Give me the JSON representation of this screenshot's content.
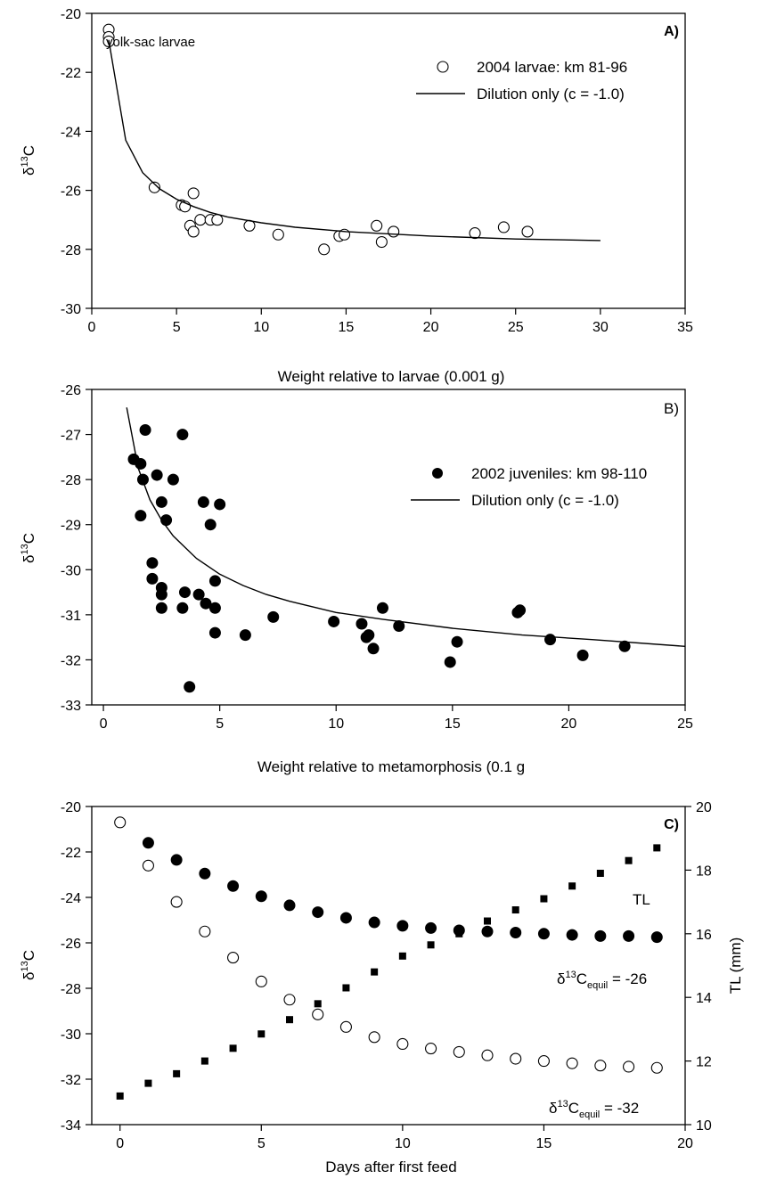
{
  "chart_data": [
    {
      "type": "scatter",
      "panel_label": "A)",
      "xlabel": "Weight relative to larvae (0.001 g)",
      "ylabel_main": "δ",
      "ylabel_sup": "13",
      "ylabel_tail": "C",
      "xlim": [
        0,
        35
      ],
      "ylim": [
        -30,
        -20
      ],
      "xticks": [
        0,
        5,
        10,
        15,
        20,
        25,
        30,
        35
      ],
      "yticks": [
        -30,
        -28,
        -26,
        -24,
        -22,
        -20
      ],
      "grid": false,
      "legend_position": "top-right",
      "annotation": "yolk-sac larvae",
      "series": [
        {
          "name": "2004 larvae: km 81-96",
          "style": "open-circle",
          "points": [
            [
              1.0,
              -20.55
            ],
            [
              1.0,
              -20.8
            ],
            [
              1.0,
              -20.95
            ],
            [
              3.7,
              -25.9
            ],
            [
              5.3,
              -26.5
            ],
            [
              5.5,
              -26.55
            ],
            [
              5.8,
              -27.2
            ],
            [
              6.0,
              -27.4
            ],
            [
              6.0,
              -26.1
            ],
            [
              6.4,
              -27.0
            ],
            [
              7.0,
              -27.0
            ],
            [
              7.4,
              -27.0
            ],
            [
              9.3,
              -27.2
            ],
            [
              11.0,
              -27.5
            ],
            [
              13.7,
              -28.0
            ],
            [
              14.6,
              -27.55
            ],
            [
              14.9,
              -27.5
            ],
            [
              16.8,
              -27.2
            ],
            [
              17.1,
              -27.75
            ],
            [
              17.8,
              -27.4
            ],
            [
              22.6,
              -27.45
            ],
            [
              24.3,
              -27.25
            ],
            [
              25.7,
              -27.4
            ]
          ]
        },
        {
          "name": "Dilution only (c = -1.0)",
          "style": "line",
          "points": [
            [
              1,
              -20.9
            ],
            [
              2,
              -24.3
            ],
            [
              3,
              -25.4
            ],
            [
              4,
              -25.95
            ],
            [
              5,
              -26.3
            ],
            [
              6,
              -26.55
            ],
            [
              7,
              -26.75
            ],
            [
              8,
              -26.9
            ],
            [
              10,
              -27.1
            ],
            [
              12,
              -27.25
            ],
            [
              15,
              -27.4
            ],
            [
              20,
              -27.55
            ],
            [
              25,
              -27.65
            ],
            [
              30,
              -27.7
            ]
          ]
        }
      ]
    },
    {
      "type": "scatter",
      "panel_label": "B)",
      "xlabel": "Weight relative to metamorphosis (0.1 g",
      "ylabel_main": "δ",
      "ylabel_sup": "13",
      "ylabel_tail": "C",
      "xlim": [
        -0.5,
        25
      ],
      "ylim": [
        -33,
        -26
      ],
      "xticks": [
        0,
        5,
        10,
        15,
        20,
        25
      ],
      "yticks": [
        -33,
        -32,
        -31,
        -30,
        -29,
        -28,
        -27,
        -26
      ],
      "grid": false,
      "legend_position": "top-right",
      "series": [
        {
          "name": "2002 juveniles: km 98-110",
          "style": "filled-circle",
          "points": [
            [
              1.3,
              -27.55
            ],
            [
              1.6,
              -27.65
            ],
            [
              1.6,
              -28.8
            ],
            [
              1.7,
              -28.0
            ],
            [
              1.8,
              -26.9
            ],
            [
              2.1,
              -29.85
            ],
            [
              2.1,
              -30.2
            ],
            [
              2.3,
              -27.9
            ],
            [
              2.5,
              -28.5
            ],
            [
              2.5,
              -30.4
            ],
            [
              2.5,
              -30.55
            ],
            [
              2.5,
              -30.85
            ],
            [
              2.7,
              -28.9
            ],
            [
              3.0,
              -28.0
            ],
            [
              3.4,
              -27.0
            ],
            [
              3.4,
              -30.85
            ],
            [
              3.5,
              -30.5
            ],
            [
              3.7,
              -32.6
            ],
            [
              4.1,
              -30.55
            ],
            [
              4.3,
              -28.5
            ],
            [
              4.4,
              -30.75
            ],
            [
              4.6,
              -29.0
            ],
            [
              4.8,
              -30.25
            ],
            [
              4.8,
              -30.85
            ],
            [
              4.8,
              -31.4
            ],
            [
              5.0,
              -28.55
            ],
            [
              6.1,
              -31.45
            ],
            [
              7.3,
              -31.05
            ],
            [
              9.9,
              -31.15
            ],
            [
              11.1,
              -31.2
            ],
            [
              11.3,
              -31.5
            ],
            [
              11.4,
              -31.45
            ],
            [
              11.6,
              -31.75
            ],
            [
              12.0,
              -30.85
            ],
            [
              12.7,
              -31.25
            ],
            [
              14.9,
              -32.05
            ],
            [
              15.2,
              -31.6
            ],
            [
              17.8,
              -30.95
            ],
            [
              17.9,
              -30.9
            ],
            [
              19.2,
              -31.55
            ],
            [
              20.6,
              -31.9
            ],
            [
              22.4,
              -31.7
            ]
          ]
        },
        {
          "name": "Dilution only (c = -1.0)",
          "style": "line",
          "points": [
            [
              1,
              -26.4
            ],
            [
              1.5,
              -27.75
            ],
            [
              2,
              -28.45
            ],
            [
              2.5,
              -28.9
            ],
            [
              3,
              -29.25
            ],
            [
              4,
              -29.75
            ],
            [
              5,
              -30.1
            ],
            [
              6,
              -30.35
            ],
            [
              7,
              -30.55
            ],
            [
              8,
              -30.7
            ],
            [
              10,
              -30.95
            ],
            [
              12,
              -31.1
            ],
            [
              15,
              -31.3
            ],
            [
              18,
              -31.45
            ],
            [
              21,
              -31.55
            ],
            [
              25,
              -31.7
            ]
          ]
        }
      ]
    },
    {
      "type": "scatter",
      "panel_label": "C)",
      "xlabel": "Days after first feed",
      "ylabel_main": "δ",
      "ylabel_sup": "13",
      "ylabel_tail": "C",
      "y2label": "TL (mm)",
      "xlim": [
        -1,
        20
      ],
      "ylim": [
        -34,
        -20
      ],
      "y2lim": [
        10,
        20
      ],
      "xticks": [
        0,
        5,
        10,
        15,
        20
      ],
      "yticks": [
        -34,
        -32,
        -30,
        -28,
        -26,
        -24,
        -22,
        -20
      ],
      "y2ticks": [
        10,
        12,
        14,
        16,
        18,
        20
      ],
      "grid": false,
      "annotations": {
        "tl": "TL",
        "eq1_prefix": "δ",
        "eq1_sup": "13",
        "eq1_c": "C",
        "eq1_sub": "equil",
        "eq1_value": " = -26",
        "eq2_prefix": "δ",
        "eq2_sup": "13",
        "eq2_c": "C",
        "eq2_sub": "equil",
        "eq2_value": " = -32"
      },
      "series": [
        {
          "name": "δ13C equil = -26",
          "style": "filled-circle",
          "axis": "left",
          "x": [
            1,
            2,
            3,
            4,
            5,
            6,
            7,
            8,
            9,
            10,
            11,
            12,
            13,
            14,
            15,
            16,
            17,
            18,
            19
          ],
          "y": [
            -21.6,
            -22.35,
            -22.95,
            -23.5,
            -23.95,
            -24.35,
            -24.65,
            -24.9,
            -25.1,
            -25.25,
            -25.35,
            -25.45,
            -25.5,
            -25.55,
            -25.6,
            -25.65,
            -25.7,
            -25.7,
            -25.75
          ]
        },
        {
          "name": "δ13C equil = -32",
          "style": "open-circle",
          "axis": "left",
          "x": [
            0,
            1,
            2,
            3,
            4,
            5,
            6,
            7,
            8,
            9,
            10,
            11,
            12,
            13,
            14,
            15,
            16,
            17,
            18,
            19
          ],
          "y": [
            -20.7,
            -22.6,
            -24.2,
            -25.5,
            -26.65,
            -27.7,
            -28.5,
            -29.15,
            -29.7,
            -30.15,
            -30.45,
            -30.65,
            -30.8,
            -30.95,
            -31.1,
            -31.2,
            -31.3,
            -31.4,
            -31.45,
            -31.5
          ]
        },
        {
          "name": "TL",
          "style": "filled-square",
          "axis": "right",
          "x": [
            0,
            1,
            2,
            3,
            4,
            5,
            6,
            7,
            8,
            9,
            10,
            11,
            12,
            13,
            14,
            15,
            16,
            17,
            18,
            19
          ],
          "y": [
            10.9,
            11.3,
            11.6,
            12.0,
            12.4,
            12.85,
            13.3,
            13.8,
            14.3,
            14.8,
            15.3,
            15.65,
            16.0,
            16.4,
            16.75,
            17.1,
            17.5,
            17.9,
            18.3,
            18.7
          ]
        }
      ]
    }
  ]
}
